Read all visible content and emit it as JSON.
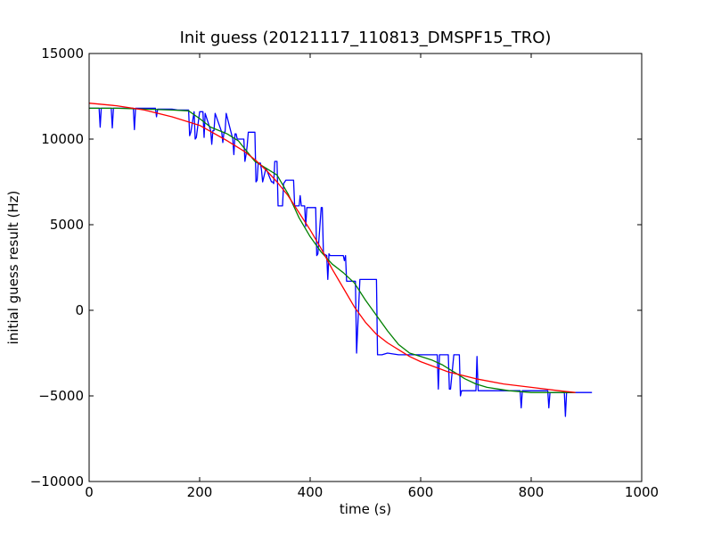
{
  "chart_data": {
    "type": "line",
    "title": "Init guess (20121117_110813_DMSPF15_TRO)",
    "xlabel": "time (s)",
    "ylabel": "initial guess result (Hz)",
    "xlim": [
      0,
      1000
    ],
    "ylim": [
      -10000,
      15000
    ],
    "xticks": [
      0,
      200,
      400,
      600,
      800,
      1000
    ],
    "yticks": [
      -10000,
      -5000,
      0,
      5000,
      10000,
      15000
    ],
    "grid": false,
    "series": [
      {
        "color": "#0000ff",
        "x": [
          0,
          5,
          10,
          18,
          20,
          22,
          30,
          40,
          42,
          44,
          50,
          60,
          70,
          80,
          82,
          84,
          90,
          100,
          110,
          120,
          122,
          124,
          130,
          140,
          150,
          160,
          170,
          180,
          182,
          184,
          190,
          192,
          194,
          200,
          204,
          206,
          208,
          210,
          220,
          222,
          224,
          226,
          228,
          240,
          242,
          244,
          246,
          248,
          260,
          262,
          264,
          266,
          268,
          280,
          282,
          284,
          286,
          288,
          300,
          302,
          304,
          306,
          310,
          312,
          314,
          320,
          330,
          332,
          334,
          336,
          340,
          342,
          344,
          346,
          350,
          352,
          354,
          356,
          370,
          372,
          374,
          380,
          382,
          384,
          390,
          392,
          394,
          400,
          410,
          412,
          414,
          420,
          422,
          424,
          430,
          432,
          434,
          436,
          440,
          460,
          462,
          464,
          466,
          480,
          482,
          484,
          490,
          492,
          494,
          500,
          520,
          522,
          524,
          530,
          540,
          560,
          580,
          600,
          620,
          630,
          632,
          634,
          640,
          650,
          652,
          654,
          660,
          670,
          672,
          674,
          680,
          700,
          702,
          704,
          720,
          740,
          760,
          780,
          782,
          784,
          800,
          820,
          830,
          832,
          834,
          840,
          850,
          860,
          862,
          864,
          870,
          880,
          900,
          910
        ],
        "y": [
          11800,
          11800,
          11800,
          11800,
          10700,
          11800,
          11800,
          11800,
          10650,
          11800,
          11800,
          11800,
          11800,
          11800,
          10550,
          11800,
          11800,
          11800,
          11800,
          11800,
          11300,
          11750,
          11750,
          11750,
          11750,
          11700,
          11700,
          11700,
          10200,
          10400,
          11600,
          10000,
          10100,
          11600,
          11600,
          11600,
          10100,
          11500,
          10500,
          9700,
          10500,
          10500,
          11500,
          10400,
          9800,
          10400,
          10400,
          11500,
          10000,
          9100,
          10300,
          10300,
          10000,
          10000,
          8700,
          9100,
          9600,
          10400,
          10400,
          7500,
          7600,
          8600,
          8600,
          8200,
          7500,
          8300,
          7500,
          7500,
          7400,
          8700,
          8700,
          6100,
          6100,
          6100,
          6100,
          7400,
          7500,
          7600,
          7600,
          6100,
          6100,
          6100,
          6700,
          6100,
          6100,
          4900,
          6000,
          6000,
          6000,
          3200,
          3300,
          6000,
          6000,
          3300,
          3200,
          1800,
          3300,
          3200,
          3200,
          3200,
          2900,
          3200,
          1700,
          1700,
          1700,
          -2500,
          1800,
          1800,
          1800,
          1800,
          1800,
          -2600,
          -2600,
          -2600,
          -2500,
          -2600,
          -2600,
          -2600,
          -2600,
          -2600,
          -4600,
          -2600,
          -2600,
          -2600,
          -4600,
          -4600,
          -2600,
          -2600,
          -5000,
          -4700,
          -4700,
          -4700,
          -2700,
          -4700,
          -4700,
          -4700,
          -4700,
          -4700,
          -5700,
          -4700,
          -4700,
          -4700,
          -4700,
          -5700,
          -4800,
          -4800,
          -4800,
          -4800,
          -6200,
          -4800,
          -4800,
          -4800,
          -4800,
          -4800
        ]
      },
      {
        "color": "#008000",
        "x": [
          0,
          50,
          100,
          150,
          180,
          200,
          220,
          250,
          270,
          290,
          300,
          320,
          340,
          360,
          380,
          400,
          420,
          440,
          460,
          480,
          500,
          520,
          540,
          560,
          580,
          600,
          620,
          640,
          660,
          680,
          700,
          720,
          740,
          760,
          780,
          800,
          820,
          840,
          860,
          880
        ],
        "y": [
          11800,
          11800,
          11750,
          11700,
          11650,
          11200,
          10700,
          10300,
          9900,
          9100,
          8700,
          8300,
          7900,
          6800,
          5400,
          4300,
          3400,
          2700,
          2200,
          1600,
          600,
          -300,
          -1200,
          -2000,
          -2500,
          -2700,
          -2900,
          -3200,
          -3600,
          -4000,
          -4300,
          -4500,
          -4600,
          -4700,
          -4750,
          -4800,
          -4800,
          -4800,
          -4800,
          -4800
        ]
      },
      {
        "color": "#ff0000",
        "x": [
          0,
          50,
          100,
          150,
          200,
          250,
          280,
          300,
          320,
          340,
          360,
          380,
          400,
          420,
          440,
          460,
          480,
          500,
          520,
          540,
          560,
          580,
          600,
          650,
          700,
          750,
          800,
          850,
          880
        ],
        "y": [
          12100,
          11950,
          11700,
          11300,
          10800,
          9900,
          9300,
          8800,
          8200,
          7500,
          6700,
          5700,
          4700,
          3600,
          2400,
          1300,
          200,
          -700,
          -1400,
          -1900,
          -2300,
          -2700,
          -3000,
          -3600,
          -4000,
          -4300,
          -4500,
          -4700,
          -4800
        ]
      }
    ]
  }
}
